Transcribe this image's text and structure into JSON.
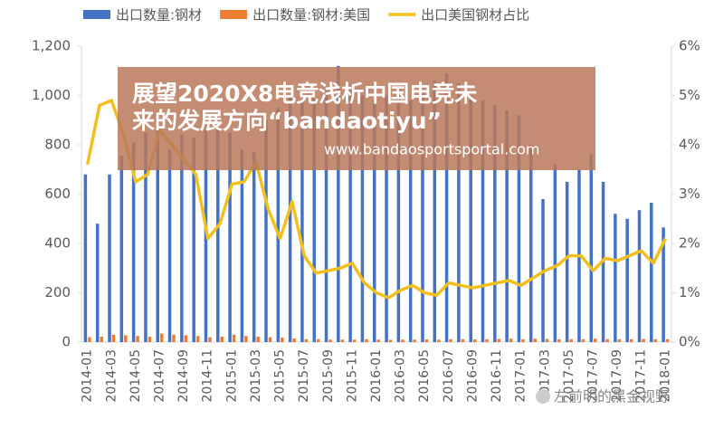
{
  "chart_data": {
    "type": "bar-line",
    "categories": [
      "2014-01",
      null,
      "2014-03",
      null,
      "2014-05",
      null,
      "2014-07",
      null,
      "2014-09",
      null,
      "2014-11",
      null,
      "2015-01",
      null,
      "2015-03",
      null,
      "2015-05",
      null,
      "2015-07",
      null,
      "2015-09",
      null,
      "2015-11",
      null,
      "2016-01",
      null,
      "2016-03",
      null,
      "2016-05",
      null,
      "2016-07",
      null,
      "2016-09",
      null,
      "2016-11",
      null,
      "2017-01",
      null,
      "2017-03",
      null,
      "2017-05",
      null,
      "2017-07",
      null,
      "2017-09",
      null,
      "2017-11",
      null,
      "2018-01"
    ],
    "series": [
      {
        "name": "出口数量:钢材",
        "color": "#4472c4",
        "values": [
          680,
          480,
          680,
          755,
          810,
          850,
          860,
          780,
          840,
          830,
          860,
          870,
          850,
          780,
          770,
          900,
          950,
          1000,
          980,
          990,
          1020,
          1120,
          1040,
          1000,
          980,
          1000,
          1020,
          980,
          1010,
          1060,
          1090,
          1050,
          1000,
          980,
          960,
          940,
          920,
          800,
          580,
          720,
          650,
          700,
          760,
          650,
          520,
          500,
          535,
          565,
          465
        ]
      },
      {
        "name": "出口数量:钢材:美国",
        "color": "#ed7d31",
        "values": [
          20,
          22,
          30,
          28,
          25,
          22,
          35,
          30,
          28,
          25,
          20,
          22,
          30,
          25,
          22,
          20,
          18,
          15,
          12,
          12,
          10,
          10,
          10,
          12,
          10,
          9,
          10,
          10,
          11,
          10,
          12,
          12,
          11,
          12,
          13,
          14,
          12,
          14,
          13,
          12,
          12,
          12,
          14,
          12,
          12,
          12,
          13,
          12,
          12
        ]
      },
      {
        "name": "出口美国钢材占比",
        "color": "#f2c01e",
        "axis": "y2",
        "values": [
          3.6,
          4.8,
          4.9,
          4.2,
          3.25,
          3.4,
          4.3,
          4.0,
          3.7,
          3.4,
          2.1,
          2.4,
          3.2,
          3.25,
          3.65,
          2.7,
          2.1,
          2.85,
          1.75,
          1.4,
          1.45,
          1.5,
          1.6,
          1.2,
          1.0,
          0.9,
          1.05,
          1.15,
          1.0,
          0.95,
          1.2,
          1.15,
          1.1,
          1.15,
          1.2,
          1.25,
          1.15,
          1.3,
          1.45,
          1.55,
          1.75,
          1.75,
          1.45,
          1.7,
          1.65,
          1.75,
          1.85,
          1.6,
          2.1
        ]
      }
    ],
    "ylim": [
      0,
      1200
    ],
    "yticks": [
      0,
      200,
      400,
      600,
      800,
      {
        "value": 1000,
        "label": "1,000"
      },
      {
        "value": 1200,
        "label": "1,200"
      }
    ],
    "y2lim": [
      0,
      6
    ],
    "y2ticks": [
      {
        "value": 0,
        "label": "0%"
      },
      {
        "value": 1,
        "label": "1%"
      },
      {
        "value": 2,
        "label": "2%"
      },
      {
        "value": 3,
        "label": "3%"
      },
      {
        "value": 4,
        "label": "4%"
      },
      {
        "value": 5,
        "label": "5%"
      },
      {
        "value": 6,
        "label": "6%"
      }
    ]
  },
  "overlay": {
    "title": "展望2020X8电竞浅析中国电竞未来的发展方向“bandaotiyu”",
    "url": "www.bandaosportsportal.com",
    "watermark": "左前明的黑金视野"
  }
}
